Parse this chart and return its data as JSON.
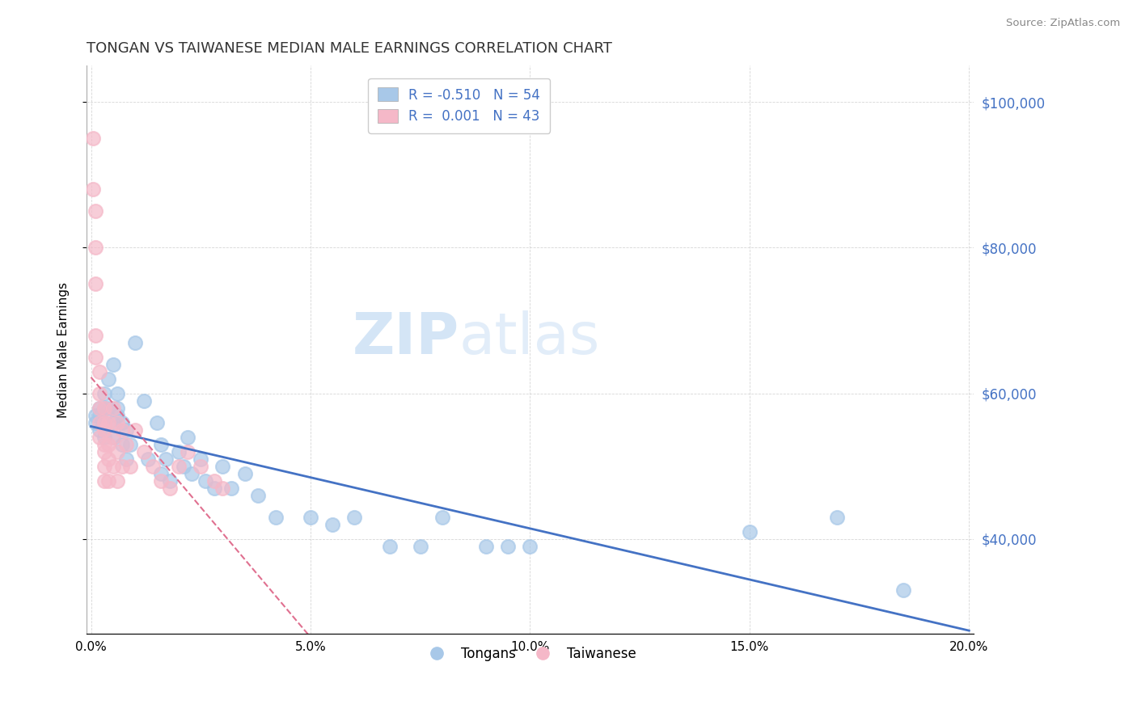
{
  "title": "TONGAN VS TAIWANESE MEDIAN MALE EARNINGS CORRELATION CHART",
  "source": "Source: ZipAtlas.com",
  "ylabel": "Median Male Earnings",
  "xlim": [
    -0.001,
    0.201
  ],
  "ylim": [
    27000,
    105000
  ],
  "yticks": [
    40000,
    60000,
    80000,
    100000
  ],
  "ytick_labels": [
    "$40,000",
    "$60,000",
    "$80,000",
    "$100,000"
  ],
  "xticks": [
    0.0,
    0.05,
    0.1,
    0.15,
    0.2
  ],
  "xtick_labels": [
    "0.0%",
    "5.0%",
    "10.0%",
    "15.0%",
    "20.0%"
  ],
  "watermark_zip": "ZIP",
  "watermark_atlas": "atlas",
  "tongan_color": "#a8c8e8",
  "taiwanese_color": "#f5b8c8",
  "tongan_line_color": "#4472c4",
  "taiwanese_line_color": "#e07090",
  "value_color": "#4472c4",
  "background_color": "#ffffff",
  "grid_color": "#cccccc",
  "tongan_x": [
    0.001,
    0.001,
    0.002,
    0.002,
    0.002,
    0.003,
    0.003,
    0.003,
    0.003,
    0.004,
    0.004,
    0.005,
    0.005,
    0.005,
    0.006,
    0.006,
    0.006,
    0.007,
    0.007,
    0.008,
    0.008,
    0.009,
    0.01,
    0.012,
    0.013,
    0.015,
    0.016,
    0.016,
    0.017,
    0.018,
    0.02,
    0.021,
    0.022,
    0.023,
    0.025,
    0.026,
    0.028,
    0.03,
    0.032,
    0.035,
    0.038,
    0.042,
    0.05,
    0.055,
    0.06,
    0.068,
    0.075,
    0.08,
    0.09,
    0.095,
    0.1,
    0.15,
    0.17,
    0.185
  ],
  "tongan_y": [
    57000,
    56000,
    58000,
    55000,
    57000,
    60000,
    58000,
    56000,
    54000,
    62000,
    58000,
    64000,
    56000,
    54000,
    58000,
    57000,
    60000,
    56000,
    53000,
    55000,
    51000,
    53000,
    67000,
    59000,
    51000,
    56000,
    53000,
    49000,
    51000,
    48000,
    52000,
    50000,
    54000,
    49000,
    51000,
    48000,
    47000,
    50000,
    47000,
    49000,
    46000,
    43000,
    43000,
    42000,
    43000,
    39000,
    39000,
    43000,
    39000,
    39000,
    39000,
    41000,
    43000,
    33000
  ],
  "taiwanese_x": [
    0.0005,
    0.0005,
    0.001,
    0.001,
    0.001,
    0.001,
    0.001,
    0.002,
    0.002,
    0.002,
    0.002,
    0.002,
    0.003,
    0.003,
    0.003,
    0.003,
    0.003,
    0.003,
    0.003,
    0.004,
    0.004,
    0.004,
    0.004,
    0.005,
    0.005,
    0.005,
    0.006,
    0.006,
    0.006,
    0.007,
    0.007,
    0.008,
    0.009,
    0.01,
    0.012,
    0.014,
    0.016,
    0.018,
    0.02,
    0.022,
    0.025,
    0.028,
    0.03
  ],
  "taiwanese_y": [
    95000,
    88000,
    85000,
    80000,
    75000,
    68000,
    65000,
    63000,
    60000,
    58000,
    56000,
    54000,
    58000,
    56000,
    55000,
    53000,
    52000,
    50000,
    48000,
    56000,
    53000,
    51000,
    48000,
    58000,
    54000,
    50000,
    56000,
    52000,
    48000,
    55000,
    50000,
    53000,
    50000,
    55000,
    52000,
    50000,
    48000,
    47000,
    50000,
    52000,
    50000,
    48000,
    47000
  ]
}
